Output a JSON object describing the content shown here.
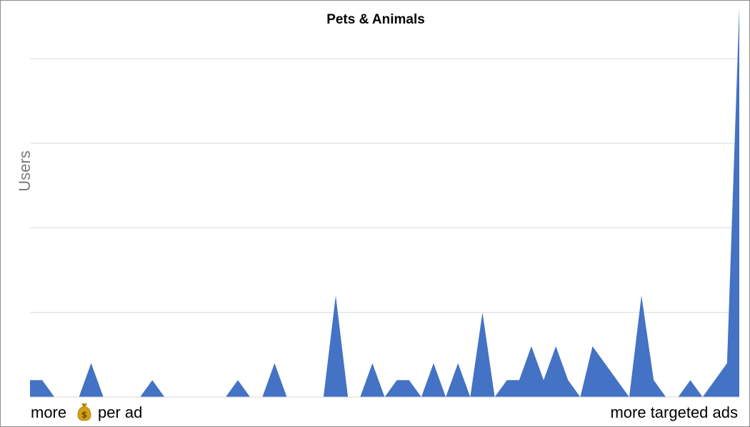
{
  "chart_data": {
    "type": "area",
    "title": "Pets & Animals",
    "ylabel": "Users",
    "xlabel_left": "more",
    "xlabel_left_icon": "money-bag-icon",
    "xlabel_left_suffix": "per ad",
    "xlabel_right": "more targeted ads",
    "ylim": [
      0,
      23
    ],
    "grid": true,
    "legend": "none",
    "colors": {
      "series": "#4472C4",
      "grid": "#d9d9d9",
      "money_bag": "#d4a017"
    },
    "series": [
      {
        "values": [
          1,
          1,
          0,
          0,
          0,
          2,
          0,
          0,
          0,
          0,
          1,
          0,
          0,
          0,
          0,
          0,
          0,
          1,
          0,
          0,
          2,
          0,
          0,
          0,
          0,
          6,
          0,
          0,
          2,
          0,
          1,
          1,
          0,
          2,
          0,
          2,
          0,
          5,
          0,
          1,
          1,
          3,
          1,
          3,
          1,
          0,
          3,
          2,
          1,
          0,
          6,
          1,
          0,
          0,
          1,
          0,
          1,
          2,
          23
        ]
      }
    ]
  }
}
